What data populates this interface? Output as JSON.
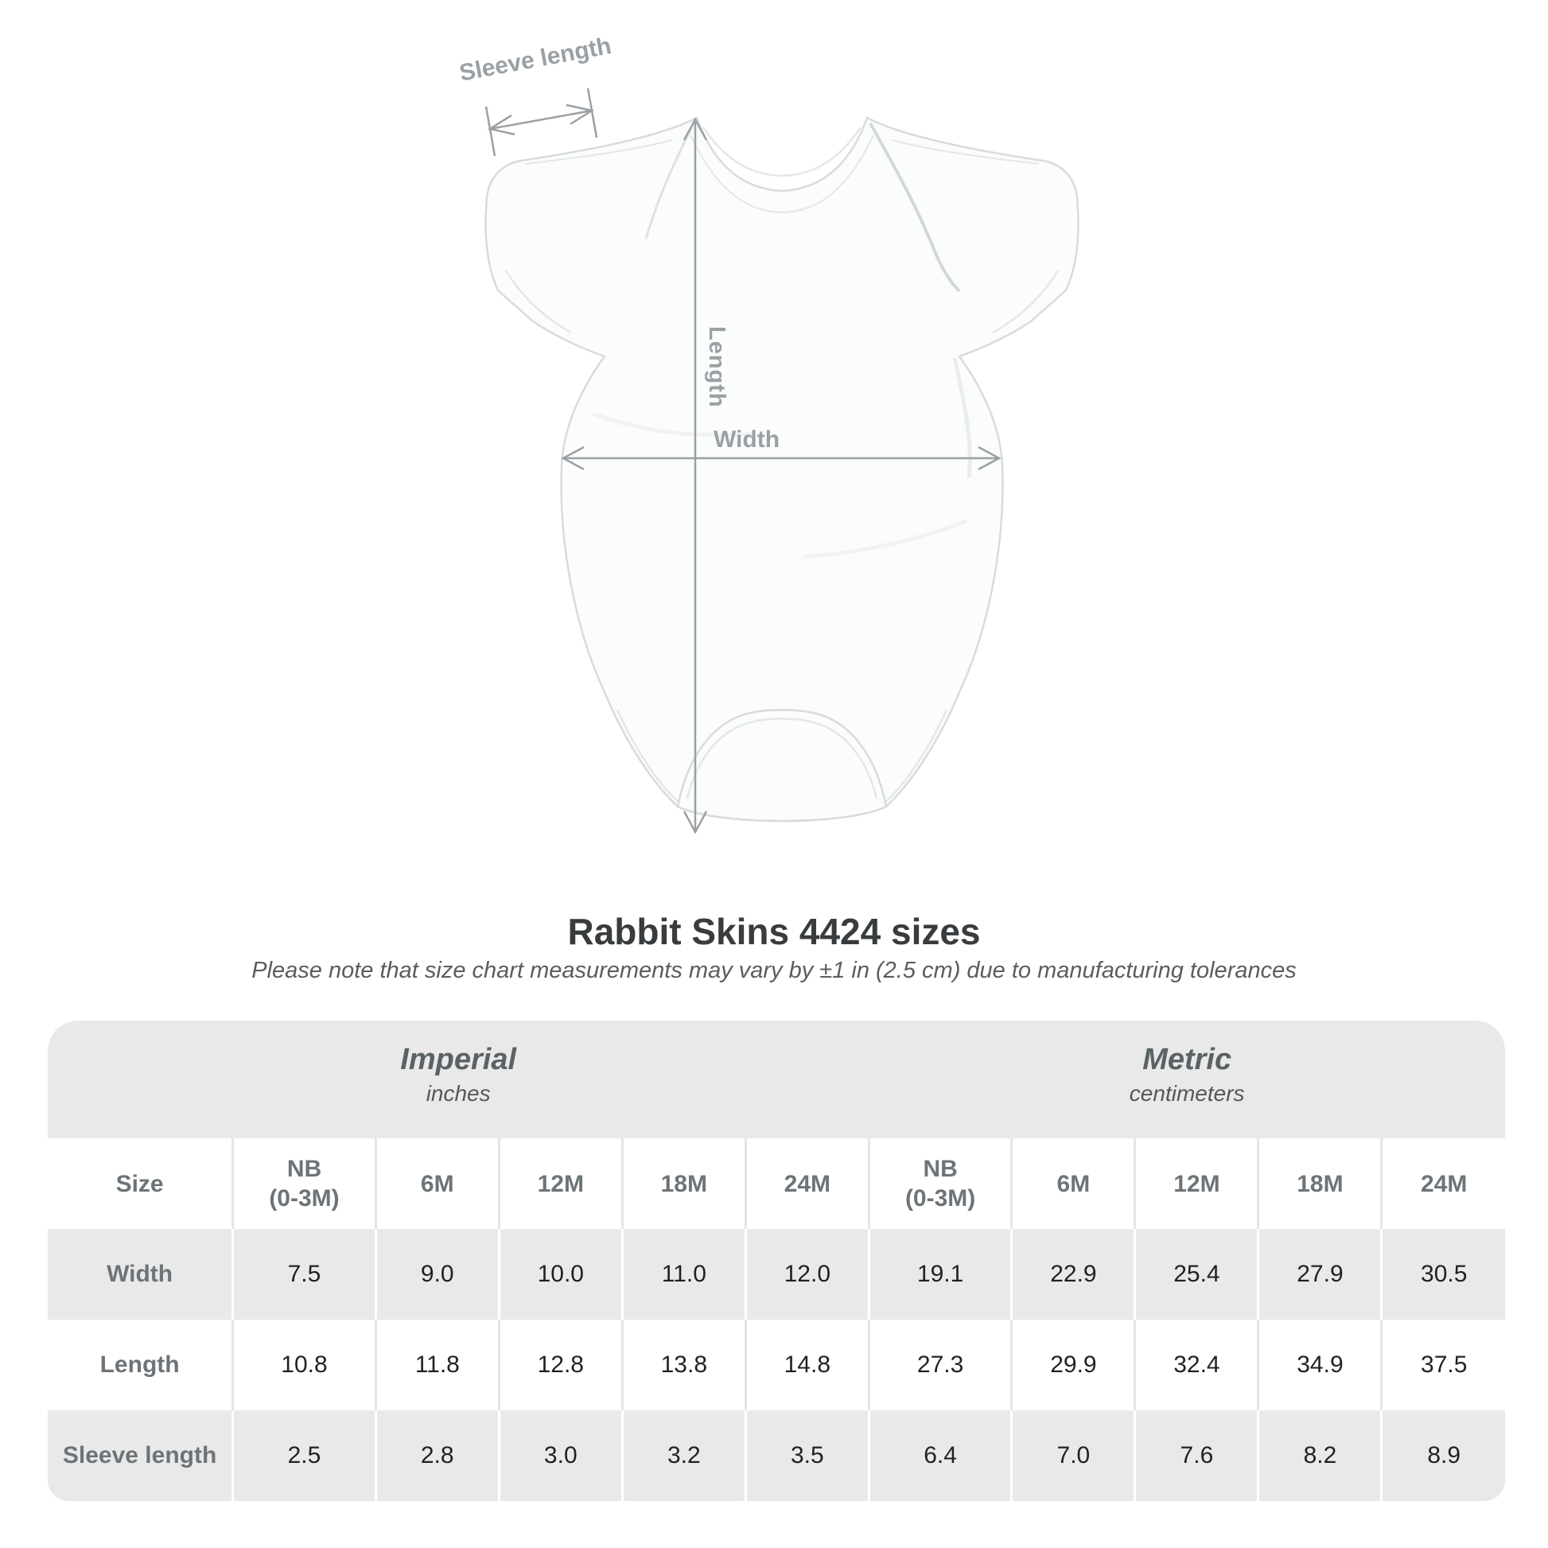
{
  "title": "Rabbit Skins 4424 sizes",
  "note": "Please note that size chart measurements may vary by ±1 in (2.5 cm) due to manufacturing tolerances",
  "diagram": {
    "sleeve_length_label": "Sleeve length",
    "length_label": "Length",
    "width_label": "Width"
  },
  "table": {
    "size_label": "Size",
    "groups": [
      {
        "label": "Imperial",
        "sublabel": "inches"
      },
      {
        "label": "Metric",
        "sublabel": "centimeters"
      }
    ],
    "columns": [
      [
        "NB",
        "(0-3M)"
      ],
      [
        "6M"
      ],
      [
        "12M"
      ],
      [
        "18M"
      ],
      [
        "24M"
      ],
      [
        "NB",
        "(0-3M)"
      ],
      [
        "6M"
      ],
      [
        "12M"
      ],
      [
        "18M"
      ],
      [
        "24M"
      ]
    ],
    "rows": [
      {
        "label": "Width",
        "values": [
          "7.5",
          "9.0",
          "10.0",
          "11.0",
          "12.0",
          "19.1",
          "22.9",
          "25.4",
          "27.9",
          "30.5"
        ]
      },
      {
        "label": "Length",
        "values": [
          "10.8",
          "11.8",
          "12.8",
          "13.8",
          "14.8",
          "27.3",
          "29.9",
          "32.4",
          "34.9",
          "37.5"
        ]
      },
      {
        "label": "Sleeve length",
        "values": [
          "2.5",
          "2.8",
          "3.0",
          "3.2",
          "3.5",
          "6.4",
          "7.0",
          "7.6",
          "8.2",
          "8.9"
        ]
      }
    ]
  },
  "chart_data": {
    "type": "table",
    "title": "Rabbit Skins 4424 sizes",
    "note": "Please note that size chart measurements may vary by ±1 in (2.5 cm) due to manufacturing tolerances",
    "unit_groups": [
      {
        "label": "Imperial",
        "units": "inches",
        "columns": [
          "NB (0-3M)",
          "6M",
          "12M",
          "18M",
          "24M"
        ]
      },
      {
        "label": "Metric",
        "units": "centimeters",
        "columns": [
          "NB (0-3M)",
          "6M",
          "12M",
          "18M",
          "24M"
        ]
      }
    ],
    "measurements": [
      {
        "label": "Width",
        "imperial": [
          7.5,
          9.0,
          10.0,
          11.0,
          12.0
        ],
        "metric": [
          19.1,
          22.9,
          25.4,
          27.9,
          30.5
        ]
      },
      {
        "label": "Length",
        "imperial": [
          10.8,
          11.8,
          12.8,
          13.8,
          14.8
        ],
        "metric": [
          27.3,
          29.9,
          32.4,
          34.9,
          37.5
        ]
      },
      {
        "label": "Sleeve length",
        "imperial": [
          2.5,
          2.8,
          3.0,
          3.2,
          3.5
        ],
        "metric": [
          6.4,
          7.0,
          7.6,
          8.2,
          8.9
        ]
      }
    ]
  },
  "colors": {
    "band": "#e9e9ea",
    "head-text": "#6d7478",
    "value-text": "#1f2123",
    "group-text": "#5b6265",
    "sub-text": "#54585a",
    "title-text": "#393c3e",
    "note-text": "#595d5f",
    "arrow": "#9ba0a4",
    "sep-on-white": "#e4e5e6",
    "sep-on-gray": "#ffffff",
    "garment-line": "#d8dbdc",
    "garment-fill": "#fbfcfc",
    "garment-detail": "#e4e7e8"
  }
}
